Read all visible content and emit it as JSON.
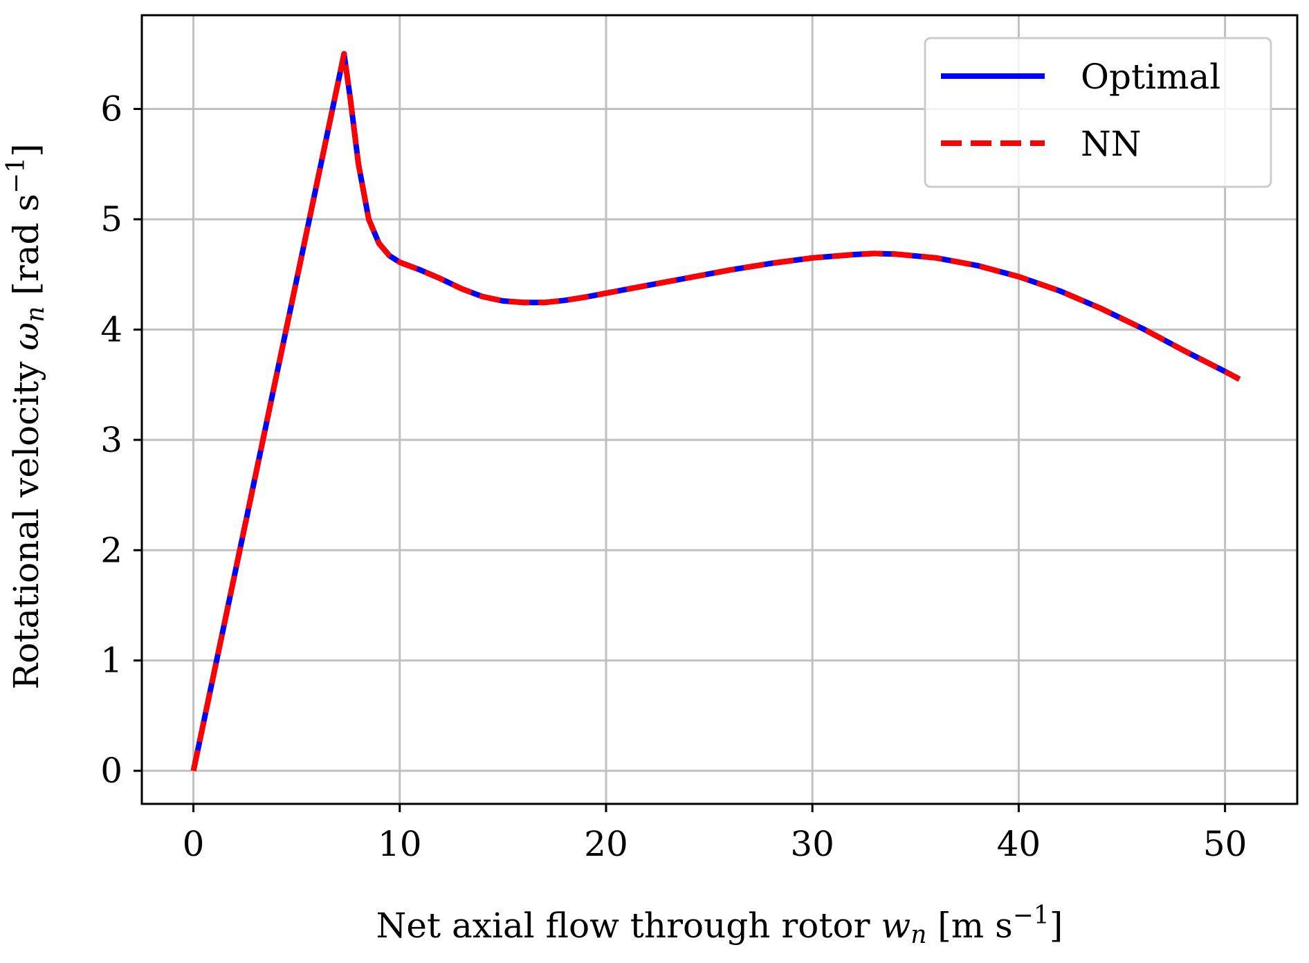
{
  "chart_data": {
    "type": "line",
    "title": "",
    "xlabel": {
      "prefix": "Net axial flow through rotor ",
      "symbol": "w",
      "subscript": "n",
      "unit_open": " [m s",
      "unit_exp": "−1",
      "unit_close": "]"
    },
    "ylabel": {
      "prefix": "Rotational velocity ",
      "symbol": "ω",
      "subscript": "n",
      "unit_open": " [rad s",
      "unit_exp": "−1",
      "unit_close": "]"
    },
    "xlim": [
      -2.5,
      53.5
    ],
    "ylim": [
      -0.3,
      6.85
    ],
    "xticks": [
      0,
      10,
      20,
      30,
      40,
      50
    ],
    "yticks": [
      0,
      1,
      2,
      3,
      4,
      5,
      6
    ],
    "grid": true,
    "legend_position": "top-right",
    "x": [
      0,
      1,
      2,
      3,
      4,
      5,
      6,
      7,
      7.3,
      7.6,
      8,
      8.5,
      9,
      9.5,
      10,
      11,
      12,
      13,
      14,
      15,
      16,
      17,
      18,
      19,
      20,
      22,
      24,
      26,
      28,
      30,
      32,
      33,
      34,
      36,
      38,
      40,
      42,
      44,
      46,
      48,
      50,
      50.7
    ],
    "series": [
      {
        "name": "Optimal",
        "color": "#0000ff",
        "style": "solid",
        "values": [
          0,
          0.89,
          1.78,
          2.67,
          3.56,
          4.45,
          5.34,
          6.23,
          6.5,
          6.1,
          5.5,
          5.0,
          4.78,
          4.67,
          4.61,
          4.54,
          4.46,
          4.37,
          4.3,
          4.26,
          4.245,
          4.245,
          4.265,
          4.295,
          4.33,
          4.4,
          4.47,
          4.54,
          4.6,
          4.65,
          4.68,
          4.69,
          4.685,
          4.65,
          4.58,
          4.48,
          4.35,
          4.19,
          4.01,
          3.81,
          3.62,
          3.55
        ]
      },
      {
        "name": "NN",
        "color": "#ff0000",
        "style": "dashed",
        "values": [
          0,
          0.89,
          1.78,
          2.67,
          3.56,
          4.45,
          5.34,
          6.23,
          6.5,
          6.1,
          5.5,
          5.0,
          4.78,
          4.67,
          4.61,
          4.54,
          4.46,
          4.37,
          4.3,
          4.26,
          4.245,
          4.245,
          4.265,
          4.295,
          4.33,
          4.4,
          4.47,
          4.54,
          4.6,
          4.65,
          4.68,
          4.69,
          4.685,
          4.65,
          4.58,
          4.48,
          4.35,
          4.19,
          4.01,
          3.81,
          3.62,
          3.55
        ]
      }
    ]
  }
}
